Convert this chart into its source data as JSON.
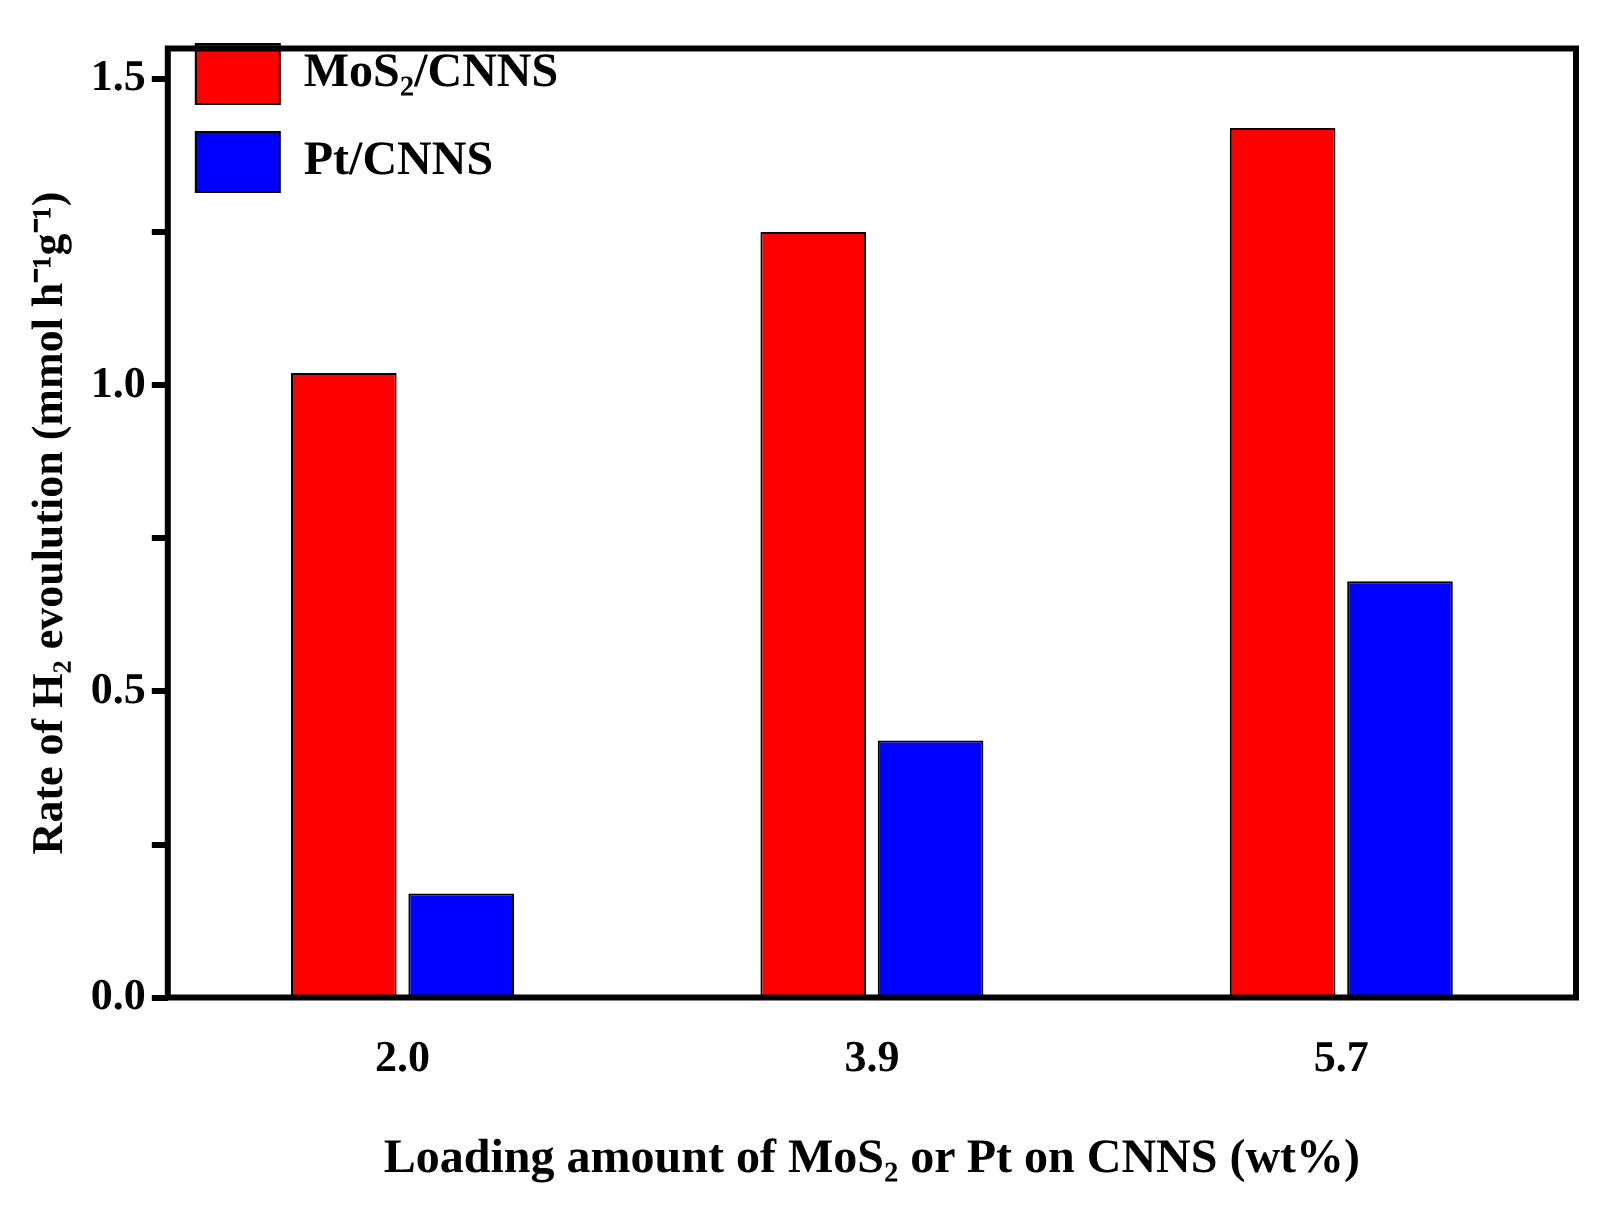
{
  "chart_data": {
    "type": "bar",
    "categories": [
      "2.0",
      "3.9",
      "5.7"
    ],
    "xlabel": "Loading amount of MoS₂ or Pt on CNNS (wt%)",
    "ylabel": "Rate of H₂ evoulution (mmol h⁻¹g⁻¹)",
    "series": [
      {
        "name": "MoS₂/CNNS",
        "color": "#ff0000",
        "values": [
          1.02,
          1.25,
          1.42
        ]
      },
      {
        "name": "Pt/CNNS",
        "color": "#0000ff",
        "values": [
          0.17,
          0.42,
          0.68
        ]
      }
    ],
    "ylim": [
      0,
      1.55
    ],
    "yticks": [
      {
        "value": 0,
        "label": "0.0"
      },
      {
        "value": 0.25,
        "label": null
      },
      0.5,
      {
        "value": 0.75,
        "label": null
      },
      {
        "value": 1,
        "label": "1.0"
      },
      {
        "value": 1.25,
        "label": null
      },
      1.5
    ],
    "grid": false,
    "legend": "top left"
  }
}
